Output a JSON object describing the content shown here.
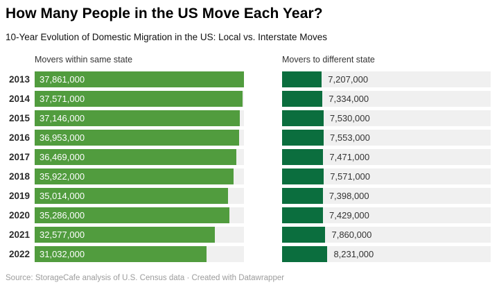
{
  "title": "How Many People in the US Move Each Year?",
  "subtitle": "10-Year Evolution of Domestic Migration in the US: Local vs. Interstate Moves",
  "columns": {
    "left_header": "Movers within same state",
    "right_header": "Movers to different state"
  },
  "footer": "Source: StorageCafe analysis of U.S. Census data · Created with Datawrapper",
  "colors": {
    "same_state_bar": "#519c3e",
    "different_state_bar": "#0b6e3e",
    "track": "#f0f0f0",
    "title_text": "#000000",
    "value_text_inside": "#ffffff",
    "value_text_outside": "#333333"
  },
  "chart_data": {
    "type": "bar",
    "orientation": "horizontal",
    "title": "How Many People in the US Move Each Year?",
    "subtitle": "10-Year Evolution of Domestic Migration in the US: Local vs. Interstate Moves",
    "categories": [
      "2013",
      "2014",
      "2015",
      "2016",
      "2017",
      "2018",
      "2019",
      "2020",
      "2021",
      "2022"
    ],
    "series": [
      {
        "name": "Movers within same state",
        "color": "#519c3e",
        "values": [
          37861000,
          37571000,
          37146000,
          36953000,
          36469000,
          35922000,
          35014000,
          35286000,
          32577000,
          31032000
        ],
        "labels": [
          "37,861,000",
          "37,571,000",
          "37,146,000",
          "36,953,000",
          "36,469,000",
          "35,922,000",
          "35,014,000",
          "35,286,000",
          "32,577,000",
          "31,032,000"
        ]
      },
      {
        "name": "Movers to different state",
        "color": "#0b6e3e",
        "values": [
          7207000,
          7334000,
          7530000,
          7553000,
          7471000,
          7571000,
          7398000,
          7429000,
          7860000,
          8231000
        ],
        "labels": [
          "7,207,000",
          "7,334,000",
          "7,530,000",
          "7,553,000",
          "7,471,000",
          "7,571,000",
          "7,398,000",
          "7,429,000",
          "7,860,000",
          "8,231,000"
        ]
      }
    ],
    "xlim": [
      0,
      37861000
    ],
    "grid": false,
    "legend_position": "column-headers",
    "value_label_position": {
      "left_series": "inside-start",
      "right_series": "outside-end"
    }
  }
}
